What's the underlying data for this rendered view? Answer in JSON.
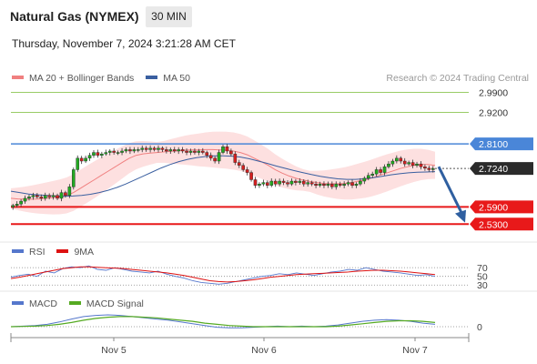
{
  "header": {
    "title": "Natural Gas (NYMEX)",
    "timeframe": "30 MIN",
    "timestamp": "Thursday, November 7, 2024 3:21:28 AM CET"
  },
  "legend_main": [
    {
      "label": "MA 20 + Bollinger Bands",
      "color": "#f08080"
    },
    {
      "label": "MA 50",
      "color": "#3a5fa0"
    }
  ],
  "legend_rsi": [
    {
      "label": "RSI",
      "color": "#5577cc"
    },
    {
      "label": "9MA",
      "color": "#dd1111"
    }
  ],
  "legend_macd": [
    {
      "label": "MACD",
      "color": "#5577cc"
    },
    {
      "label": "MACD Signal",
      "color": "#55aa22"
    }
  ],
  "credit": "Research © 2024 Trading Central",
  "colors": {
    "resistance": "#99cc66",
    "pivot": "#4a86d8",
    "support": "#e8191a",
    "current_bg": "#2b2b2b",
    "candle_up": "#22aa22",
    "candle_down": "#d42020",
    "bollinger_fill": "#fde0e0",
    "arrow": "#2f5fa0"
  },
  "chart_data": {
    "type": "candlestick",
    "ylim": [
      2.48,
      3.02
    ],
    "x_ticks": [
      "Nov 5",
      "Nov 6",
      "Nov 7"
    ],
    "levels": [
      {
        "value": 2.99,
        "label": "2.9900",
        "kind": "resistance"
      },
      {
        "value": 2.92,
        "label": "2.9200",
        "kind": "resistance"
      },
      {
        "value": 2.81,
        "label": "2.8100",
        "kind": "pivot"
      },
      {
        "value": 2.724,
        "label": "2.7240",
        "kind": "current"
      },
      {
        "value": 2.59,
        "label": "2.5900",
        "kind": "support"
      },
      {
        "value": 2.53,
        "label": "2.5300",
        "kind": "support"
      }
    ],
    "close": [
      2.595,
      2.6,
      2.61,
      2.62,
      2.625,
      2.63,
      2.625,
      2.62,
      2.63,
      2.625,
      2.63,
      2.62,
      2.64,
      2.63,
      2.66,
      2.72,
      2.76,
      2.75,
      2.76,
      2.77,
      2.78,
      2.77,
      2.775,
      2.78,
      2.785,
      2.78,
      2.78,
      2.785,
      2.79,
      2.785,
      2.79,
      2.79,
      2.795,
      2.79,
      2.795,
      2.79,
      2.795,
      2.79,
      2.785,
      2.79,
      2.785,
      2.79,
      2.785,
      2.78,
      2.785,
      2.78,
      2.785,
      2.78,
      2.77,
      2.76,
      2.75,
      2.78,
      2.8,
      2.785,
      2.775,
      2.745,
      2.735,
      2.72,
      2.71,
      2.685,
      2.665,
      2.67,
      2.675,
      2.665,
      2.68,
      2.67,
      2.68,
      2.675,
      2.67,
      2.68,
      2.675,
      2.68,
      2.67,
      2.675,
      2.67,
      2.665,
      2.67,
      2.665,
      2.67,
      2.66,
      2.67,
      2.665,
      2.67,
      2.675,
      2.665,
      2.67,
      2.68,
      2.69,
      2.7,
      2.705,
      2.72,
      2.71,
      2.73,
      2.74,
      2.75,
      2.76,
      2.75,
      2.74,
      2.745,
      2.735,
      2.74,
      2.73,
      2.725,
      2.72,
      2.724
    ],
    "ma20": [
      2.62,
      2.618,
      2.617,
      2.617,
      2.618,
      2.62,
      2.622,
      2.625,
      2.63,
      2.64,
      2.655,
      2.67,
      2.685,
      2.7,
      2.715,
      2.73,
      2.745,
      2.76,
      2.77,
      2.775,
      2.778,
      2.78,
      2.782,
      2.784,
      2.786,
      2.788,
      2.789,
      2.789,
      2.79,
      2.79,
      2.789,
      2.788,
      2.785,
      2.78,
      2.772,
      2.76,
      2.748,
      2.735,
      2.72,
      2.708,
      2.698,
      2.69,
      2.684,
      2.679,
      2.675,
      2.672,
      2.671,
      2.671,
      2.672,
      2.675,
      2.68,
      2.685,
      2.692,
      2.7,
      2.708,
      2.716,
      2.724,
      2.73,
      2.735,
      2.738,
      2.738,
      2.735
    ],
    "ma50": [
      2.645,
      2.64,
      2.635,
      2.632,
      2.63,
      2.628,
      2.627,
      2.628,
      2.63,
      2.634,
      2.64,
      2.648,
      2.658,
      2.67,
      2.684,
      2.698,
      2.712,
      2.726,
      2.738,
      2.748,
      2.756,
      2.762,
      2.766,
      2.768,
      2.768,
      2.767,
      2.764,
      2.758,
      2.75,
      2.742,
      2.733,
      2.725,
      2.717,
      2.71,
      2.703,
      2.697,
      2.692,
      2.688,
      2.686,
      2.686,
      2.688,
      2.692,
      2.697,
      2.702,
      2.706,
      2.709,
      2.711,
      2.712,
      2.713
    ],
    "rsi": [
      48,
      52,
      55,
      50,
      62,
      58,
      68,
      72,
      70,
      74,
      66,
      64,
      70,
      66,
      62,
      60,
      58,
      62,
      55,
      50,
      46,
      40,
      36,
      34,
      32,
      34,
      38,
      42,
      46,
      50,
      52,
      56,
      54,
      58,
      55,
      52,
      56,
      60,
      62,
      66,
      64,
      70,
      66,
      62,
      60,
      58,
      55,
      52,
      54,
      50
    ],
    "rsi_ma": [
      45,
      48,
      52,
      56,
      60,
      64,
      68,
      70,
      72,
      72,
      71,
      70,
      69,
      68,
      66,
      64,
      62,
      60,
      58,
      55,
      52,
      48,
      44,
      40,
      38,
      37,
      38,
      40,
      42,
      45,
      48,
      50,
      52,
      54,
      55,
      56,
      57,
      58,
      59,
      60,
      62,
      63,
      64,
      64,
      63,
      62,
      60,
      58,
      56,
      54
    ],
    "rsi_levels": [
      70,
      50,
      30
    ],
    "macd": [
      0.0,
      0.001,
      0.002,
      0.004,
      0.008,
      0.013,
      0.017,
      0.019,
      0.02,
      0.019,
      0.017,
      0.015,
      0.013,
      0.011,
      0.008,
      0.005,
      0.002,
      -0.001,
      -0.002,
      -0.002,
      -0.001,
      0.0,
      0.001,
      0.0,
      0.001,
      0.0,
      0.001,
      0.003,
      0.006,
      0.009,
      0.011,
      0.012,
      0.011,
      0.009,
      0.006,
      0.004
    ],
    "macd_signal": [
      0.0,
      0.0005,
      0.001,
      0.002,
      0.004,
      0.007,
      0.011,
      0.014,
      0.016,
      0.017,
      0.017,
      0.016,
      0.015,
      0.013,
      0.011,
      0.009,
      0.006,
      0.004,
      0.002,
      0.001,
      0.0,
      0.0,
      0.0,
      0.0,
      0.0,
      0.0,
      0.0,
      0.001,
      0.003,
      0.005,
      0.007,
      0.009,
      0.01,
      0.01,
      0.009,
      0.007
    ],
    "macd_zero_label": "0"
  }
}
